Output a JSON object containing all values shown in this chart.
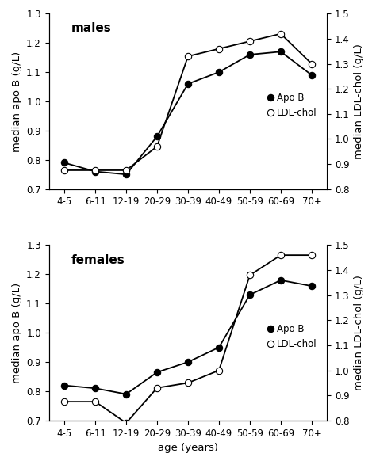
{
  "age_labels": [
    "4-5",
    "6-11",
    "12-19",
    "20-29",
    "30-39",
    "40-49",
    "50-59",
    "60-69",
    "70+"
  ],
  "males": {
    "apo_b": [
      0.79,
      0.76,
      0.75,
      0.88,
      1.06,
      1.1,
      1.16,
      1.17,
      1.09
    ],
    "ldl_chol": [
      0.875,
      0.875,
      0.875,
      0.97,
      1.33,
      1.36,
      1.39,
      1.42,
      1.3
    ]
  },
  "females": {
    "apo_b": [
      0.82,
      0.81,
      0.79,
      0.865,
      0.9,
      0.95,
      1.13,
      1.18,
      1.16
    ],
    "ldl_chol": [
      0.875,
      0.875,
      0.79,
      0.93,
      0.95,
      1.0,
      1.38,
      1.46,
      1.46
    ]
  },
  "ylim_left": [
    0.7,
    1.3
  ],
  "ylim_right": [
    0.8,
    1.5
  ],
  "yticks_left": [
    0.7,
    0.8,
    0.9,
    1.0,
    1.1,
    1.2,
    1.3
  ],
  "yticks_right": [
    0.8,
    0.9,
    1.0,
    1.1,
    1.2,
    1.3,
    1.4,
    1.5
  ],
  "ylabel_left": "median apo B (g/L)",
  "ylabel_right": "median LDL-chol (g/L)",
  "xlabel": "age (years)",
  "panel_labels": [
    "males",
    "females"
  ],
  "legend_labels": [
    "Apo B",
    "LDL-chol"
  ],
  "line_color": "#000000",
  "markersize": 6,
  "linewidth": 1.3
}
